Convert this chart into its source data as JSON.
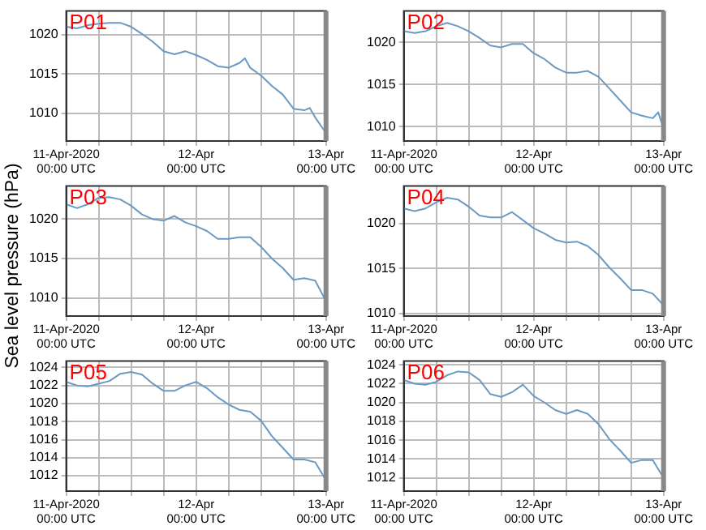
{
  "chart_data": [
    {
      "type": "line",
      "title": "P01",
      "xlim": [
        "2020-04-11T00:00",
        "2020-04-13T00:00"
      ],
      "ylim": [
        1006.5,
        1023
      ],
      "yticks": [
        1010,
        1015,
        1020
      ],
      "grid": true,
      "xticks": [
        {
          "value": "2020-04-11T00:00",
          "label": "11-Apr-2020\n00:00 UTC"
        },
        {
          "value": "2020-04-11T06:00",
          "label": null
        },
        {
          "value": "2020-04-11T12:00",
          "label": null
        },
        {
          "value": "2020-04-11T18:00",
          "label": null
        },
        {
          "value": "2020-04-12T00:00",
          "label": "12-Apr\n00:00 UTC"
        },
        {
          "value": "2020-04-12T06:00",
          "label": null
        },
        {
          "value": "2020-04-12T12:00",
          "label": null
        },
        {
          "value": "2020-04-12T18:00",
          "label": null
        },
        {
          "value": "2020-04-13T00:00",
          "label": "13-Apr\n00:00 UTC"
        }
      ],
      "x": [
        "2020-04-11T00:00",
        "2020-04-11T02:00",
        "2020-04-11T04:00",
        "2020-04-11T06:00",
        "2020-04-11T08:00",
        "2020-04-11T10:00",
        "2020-04-11T12:00",
        "2020-04-11T14:00",
        "2020-04-11T16:00",
        "2020-04-11T18:00",
        "2020-04-11T20:00",
        "2020-04-11T22:00",
        "2020-04-12T00:00",
        "2020-04-12T02:00",
        "2020-04-12T04:00",
        "2020-04-12T06:00",
        "2020-04-12T08:00",
        "2020-04-12T09:00",
        "2020-04-12T10:00",
        "2020-04-12T12:00",
        "2020-04-12T14:00",
        "2020-04-12T16:00",
        "2020-04-12T18:00",
        "2020-04-12T20:00",
        "2020-04-12T21:00",
        "2020-04-12T22:00",
        "2020-04-13T00:00"
      ],
      "series": [
        {
          "color": "#6a9ac4",
          "values": [
            1021.0,
            1020.8,
            1021.2,
            1021.4,
            1021.5,
            1021.5,
            1021.0,
            1020.1,
            1019.1,
            1017.9,
            1017.5,
            1017.9,
            1017.4,
            1016.8,
            1016.0,
            1015.8,
            1016.4,
            1017.0,
            1015.8,
            1014.8,
            1013.5,
            1012.4,
            1010.6,
            1010.4,
            1010.7,
            1009.5,
            1007.5
          ]
        }
      ]
    },
    {
      "type": "line",
      "title": "P02",
      "xlim": [
        "2020-04-11T00:00",
        "2020-04-13T00:00"
      ],
      "ylim": [
        1008.3,
        1023.7
      ],
      "yticks": [
        1010,
        1015,
        1020
      ],
      "grid": true,
      "xticks": [
        {
          "value": "2020-04-11T00:00",
          "label": "11-Apr-2020\n00:00 UTC"
        },
        {
          "value": "2020-04-11T06:00",
          "label": null
        },
        {
          "value": "2020-04-11T12:00",
          "label": null
        },
        {
          "value": "2020-04-11T18:00",
          "label": null
        },
        {
          "value": "2020-04-12T00:00",
          "label": "12-Apr\n00:00 UTC"
        },
        {
          "value": "2020-04-12T06:00",
          "label": null
        },
        {
          "value": "2020-04-12T12:00",
          "label": null
        },
        {
          "value": "2020-04-12T18:00",
          "label": null
        },
        {
          "value": "2020-04-13T00:00",
          "label": "13-Apr\n00:00 UTC"
        }
      ],
      "x": [
        "2020-04-11T00:00",
        "2020-04-11T02:00",
        "2020-04-11T04:00",
        "2020-04-11T06:00",
        "2020-04-11T08:00",
        "2020-04-11T10:00",
        "2020-04-11T12:00",
        "2020-04-11T14:00",
        "2020-04-11T16:00",
        "2020-04-11T18:00",
        "2020-04-11T20:00",
        "2020-04-11T22:00",
        "2020-04-12T00:00",
        "2020-04-12T02:00",
        "2020-04-12T04:00",
        "2020-04-12T06:00",
        "2020-04-12T08:00",
        "2020-04-12T10:00",
        "2020-04-12T12:00",
        "2020-04-12T14:00",
        "2020-04-12T16:00",
        "2020-04-12T18:00",
        "2020-04-12T20:00",
        "2020-04-12T22:00",
        "2020-04-12T23:00",
        "2020-04-13T00:00"
      ],
      "series": [
        {
          "color": "#6a9ac4",
          "values": [
            1021.3,
            1021.1,
            1021.3,
            1021.9,
            1022.3,
            1021.9,
            1021.3,
            1020.5,
            1019.6,
            1019.4,
            1019.8,
            1019.8,
            1018.7,
            1018.0,
            1017.0,
            1016.4,
            1016.4,
            1016.6,
            1015.9,
            1014.5,
            1013.1,
            1011.7,
            1011.3,
            1011.0,
            1011.7,
            1009.8
          ]
        }
      ]
    },
    {
      "type": "line",
      "title": "P03",
      "ylabel": "Sea level pressure (hPa)",
      "xlim": [
        "2020-04-11T00:00",
        "2020-04-13T00:00"
      ],
      "ylim": [
        1007.7,
        1024.2
      ],
      "yticks": [
        1010,
        1015,
        1020
      ],
      "grid": true,
      "xticks": [
        {
          "value": "2020-04-11T00:00",
          "label": "11-Apr-2020\n00:00 UTC"
        },
        {
          "value": "2020-04-11T06:00",
          "label": null
        },
        {
          "value": "2020-04-11T12:00",
          "label": null
        },
        {
          "value": "2020-04-11T18:00",
          "label": null
        },
        {
          "value": "2020-04-12T00:00",
          "label": "12-Apr\n00:00 UTC"
        },
        {
          "value": "2020-04-12T06:00",
          "label": null
        },
        {
          "value": "2020-04-12T12:00",
          "label": null
        },
        {
          "value": "2020-04-12T18:00",
          "label": null
        },
        {
          "value": "2020-04-13T00:00",
          "label": "13-Apr\n00:00 UTC"
        }
      ],
      "x": [
        "2020-04-11T00:00",
        "2020-04-11T02:00",
        "2020-04-11T04:00",
        "2020-04-11T06:00",
        "2020-04-11T08:00",
        "2020-04-11T10:00",
        "2020-04-11T12:00",
        "2020-04-11T14:00",
        "2020-04-11T16:00",
        "2020-04-11T18:00",
        "2020-04-11T20:00",
        "2020-04-11T22:00",
        "2020-04-12T00:00",
        "2020-04-12T02:00",
        "2020-04-12T04:00",
        "2020-04-12T06:00",
        "2020-04-12T08:00",
        "2020-04-12T10:00",
        "2020-04-12T12:00",
        "2020-04-12T14:00",
        "2020-04-12T16:00",
        "2020-04-12T18:00",
        "2020-04-12T20:00",
        "2020-04-12T22:00",
        "2020-04-13T00:00"
      ],
      "series": [
        {
          "color": "#6a9ac4",
          "values": [
            1021.9,
            1021.4,
            1021.9,
            1022.7,
            1022.8,
            1022.5,
            1021.7,
            1020.6,
            1020.0,
            1019.8,
            1020.4,
            1019.6,
            1019.1,
            1018.5,
            1017.5,
            1017.5,
            1017.7,
            1017.7,
            1016.5,
            1015.0,
            1013.8,
            1012.3,
            1012.5,
            1012.2,
            1009.6
          ]
        }
      ]
    },
    {
      "type": "line",
      "title": "P04",
      "xlim": [
        "2020-04-11T00:00",
        "2020-04-13T00:00"
      ],
      "ylim": [
        1009.7,
        1024.2
      ],
      "yticks": [
        1010,
        1015,
        1020
      ],
      "grid": true,
      "xticks": [
        {
          "value": "2020-04-11T00:00",
          "label": "11-Apr-2020\n00:00 UTC"
        },
        {
          "value": "2020-04-11T06:00",
          "label": null
        },
        {
          "value": "2020-04-11T12:00",
          "label": null
        },
        {
          "value": "2020-04-11T18:00",
          "label": null
        },
        {
          "value": "2020-04-12T00:00",
          "label": "12-Apr\n00:00 UTC"
        },
        {
          "value": "2020-04-12T06:00",
          "label": null
        },
        {
          "value": "2020-04-12T12:00",
          "label": null
        },
        {
          "value": "2020-04-12T18:00",
          "label": null
        },
        {
          "value": "2020-04-13T00:00",
          "label": "13-Apr\n00:00 UTC"
        }
      ],
      "x": [
        "2020-04-11T00:00",
        "2020-04-11T02:00",
        "2020-04-11T04:00",
        "2020-04-11T06:00",
        "2020-04-11T08:00",
        "2020-04-11T10:00",
        "2020-04-11T12:00",
        "2020-04-11T14:00",
        "2020-04-11T16:00",
        "2020-04-11T18:00",
        "2020-04-11T20:00",
        "2020-04-11T22:00",
        "2020-04-12T00:00",
        "2020-04-12T02:00",
        "2020-04-12T04:00",
        "2020-04-12T06:00",
        "2020-04-12T08:00",
        "2020-04-12T10:00",
        "2020-04-12T12:00",
        "2020-04-12T14:00",
        "2020-04-12T16:00",
        "2020-04-12T18:00",
        "2020-04-12T20:00",
        "2020-04-12T22:00",
        "2020-04-13T00:00"
      ],
      "series": [
        {
          "color": "#6a9ac4",
          "values": [
            1021.7,
            1021.4,
            1021.7,
            1022.4,
            1022.9,
            1022.7,
            1021.9,
            1020.9,
            1020.7,
            1020.7,
            1021.3,
            1020.4,
            1019.5,
            1018.9,
            1018.2,
            1017.9,
            1018.0,
            1017.5,
            1016.5,
            1015.1,
            1013.9,
            1012.6,
            1012.6,
            1012.2,
            1010.9
          ]
        }
      ]
    },
    {
      "type": "line",
      "title": "P05",
      "xlim": [
        "2020-04-11T00:00",
        "2020-04-13T00:00"
      ],
      "ylim": [
        1010.3,
        1024.7
      ],
      "yticks": [
        1012,
        1014,
        1016,
        1018,
        1020,
        1022,
        1024
      ],
      "grid": true,
      "xticks": [
        {
          "value": "2020-04-11T00:00",
          "label": "11-Apr-2020\n00:00 UTC"
        },
        {
          "value": "2020-04-11T06:00",
          "label": null
        },
        {
          "value": "2020-04-11T12:00",
          "label": null
        },
        {
          "value": "2020-04-11T18:00",
          "label": null
        },
        {
          "value": "2020-04-12T00:00",
          "label": "12-Apr\n00:00 UTC"
        },
        {
          "value": "2020-04-12T06:00",
          "label": null
        },
        {
          "value": "2020-04-12T12:00",
          "label": null
        },
        {
          "value": "2020-04-12T18:00",
          "label": null
        },
        {
          "value": "2020-04-13T00:00",
          "label": "13-Apr\n00:00 UTC"
        }
      ],
      "x": [
        "2020-04-11T00:00",
        "2020-04-11T02:00",
        "2020-04-11T04:00",
        "2020-04-11T06:00",
        "2020-04-11T08:00",
        "2020-04-11T10:00",
        "2020-04-11T12:00",
        "2020-04-11T14:00",
        "2020-04-11T16:00",
        "2020-04-11T18:00",
        "2020-04-11T20:00",
        "2020-04-11T22:00",
        "2020-04-12T00:00",
        "2020-04-12T02:00",
        "2020-04-12T04:00",
        "2020-04-12T06:00",
        "2020-04-12T08:00",
        "2020-04-12T10:00",
        "2020-04-12T12:00",
        "2020-04-12T14:00",
        "2020-04-12T16:00",
        "2020-04-12T18:00",
        "2020-04-12T20:00",
        "2020-04-12T22:00",
        "2020-04-13T00:00"
      ],
      "series": [
        {
          "color": "#6a9ac4",
          "values": [
            1022.4,
            1022.0,
            1021.9,
            1022.2,
            1022.5,
            1023.3,
            1023.5,
            1023.2,
            1022.2,
            1021.4,
            1021.4,
            1022.0,
            1022.4,
            1021.7,
            1020.7,
            1019.9,
            1019.3,
            1019.1,
            1018.1,
            1016.4,
            1015.1,
            1013.8,
            1013.8,
            1013.5,
            1011.5
          ]
        }
      ]
    },
    {
      "type": "line",
      "title": "P06",
      "xlim": [
        "2020-04-11T00:00",
        "2020-04-13T00:00"
      ],
      "ylim": [
        1010.6,
        1024.4
      ],
      "yticks": [
        1012,
        1014,
        1016,
        1018,
        1020,
        1022,
        1024
      ],
      "grid": true,
      "xticks": [
        {
          "value": "2020-04-11T00:00",
          "label": "11-Apr-2020\n00:00 UTC"
        },
        {
          "value": "2020-04-11T06:00",
          "label": null
        },
        {
          "value": "2020-04-11T12:00",
          "label": null
        },
        {
          "value": "2020-04-11T18:00",
          "label": null
        },
        {
          "value": "2020-04-12T00:00",
          "label": "12-Apr\n00:00 UTC"
        },
        {
          "value": "2020-04-12T06:00",
          "label": null
        },
        {
          "value": "2020-04-12T12:00",
          "label": null
        },
        {
          "value": "2020-04-12T18:00",
          "label": null
        },
        {
          "value": "2020-04-13T00:00",
          "label": "13-Apr\n00:00 UTC"
        }
      ],
      "x": [
        "2020-04-11T00:00",
        "2020-04-11T02:00",
        "2020-04-11T04:00",
        "2020-04-11T06:00",
        "2020-04-11T08:00",
        "2020-04-11T10:00",
        "2020-04-11T12:00",
        "2020-04-11T14:00",
        "2020-04-11T16:00",
        "2020-04-11T18:00",
        "2020-04-11T20:00",
        "2020-04-11T22:00",
        "2020-04-12T00:00",
        "2020-04-12T02:00",
        "2020-04-12T04:00",
        "2020-04-12T06:00",
        "2020-04-12T08:00",
        "2020-04-12T10:00",
        "2020-04-12T12:00",
        "2020-04-12T14:00",
        "2020-04-12T16:00",
        "2020-04-12T18:00",
        "2020-04-12T20:00",
        "2020-04-12T22:00",
        "2020-04-13T00:00"
      ],
      "series": [
        {
          "color": "#6a9ac4",
          "values": [
            1022.4,
            1022.0,
            1021.9,
            1022.2,
            1022.9,
            1023.3,
            1023.2,
            1022.4,
            1020.9,
            1020.6,
            1021.1,
            1021.9,
            1020.7,
            1020.0,
            1019.2,
            1018.8,
            1019.2,
            1018.8,
            1017.7,
            1016.1,
            1014.9,
            1013.6,
            1013.9,
            1013.9,
            1012.0
          ]
        }
      ]
    }
  ]
}
